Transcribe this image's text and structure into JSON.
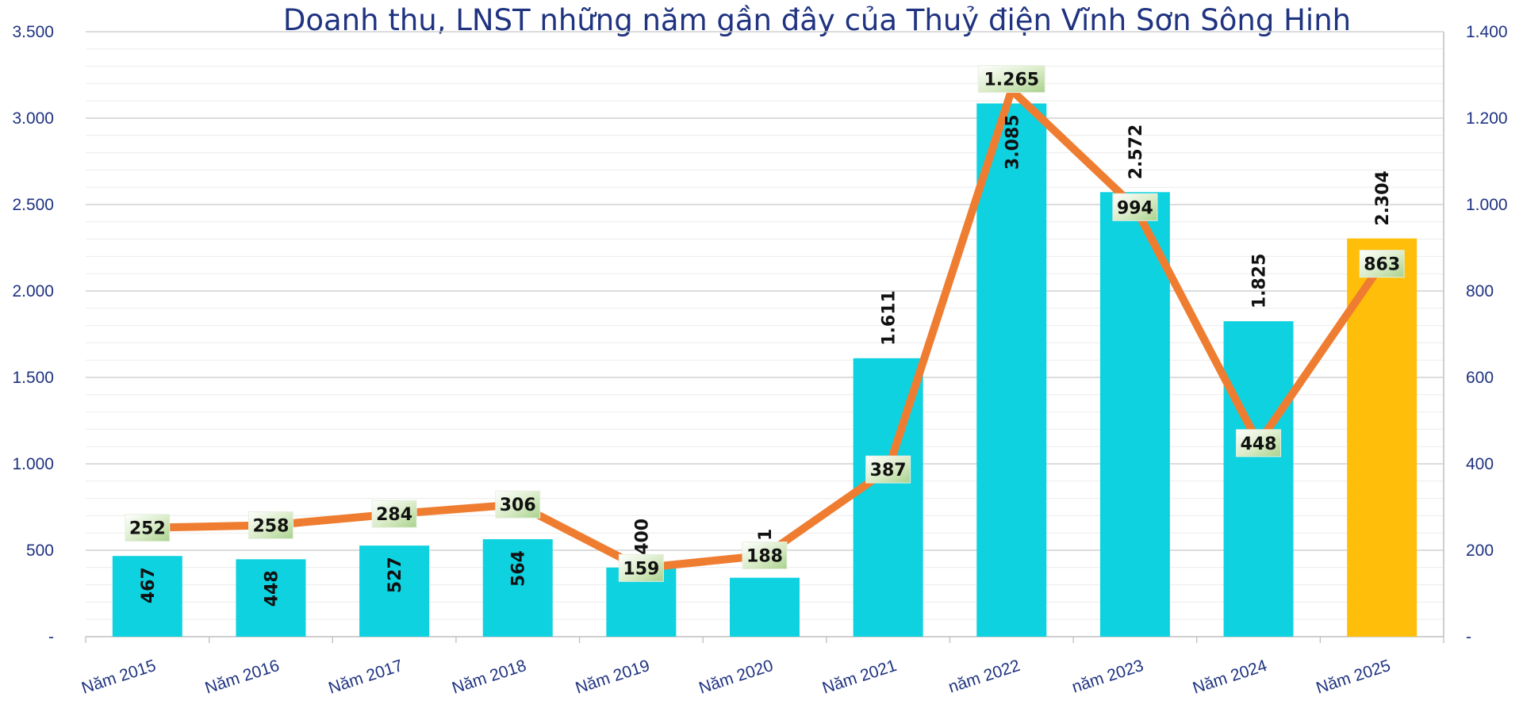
{
  "chart_data": {
    "type": "bar+line",
    "title": "Doanh thu, LNST những năm gần đây của Thuỷ điện Vĩnh Sơn Sông Hinh",
    "categories": [
      "Năm 2015",
      "Năm 2016",
      "Năm 2017",
      "Năm 2018",
      "Năm 2019",
      "Năm 2020",
      "Năm 2021",
      "năm 2022",
      "năm 2023",
      "Năm 2024",
      "Năm 2025"
    ],
    "bar_series": {
      "values": [
        467,
        448,
        527,
        564,
        400,
        341,
        1611,
        3085,
        2572,
        1825,
        2304
      ],
      "labels": [
        "467",
        "448",
        "527",
        "564",
        "400",
        "341",
        "1.611",
        "3.085",
        "2.572",
        "1.825",
        "2.304"
      ],
      "color": "#0fd2e0",
      "highlight_color": "#ffbe0a",
      "highlight_index": 10,
      "axis": "left"
    },
    "line_series": {
      "values": [
        252,
        258,
        284,
        306,
        159,
        188,
        387,
        1265,
        994,
        448,
        863
      ],
      "labels": [
        "252",
        "258",
        "284",
        "306",
        "159",
        "188",
        "387",
        "1.265",
        "994",
        "448",
        "863"
      ],
      "color": "#ef7d31",
      "axis": "right"
    },
    "left_axis": {
      "ylim": [
        0,
        3500
      ],
      "ticks": [
        0,
        500,
        1000,
        1500,
        2000,
        2500,
        3000,
        3500
      ],
      "tick_labels": [
        "-",
        "500",
        "1.000",
        "1.500",
        "2.000",
        "2.500",
        "3.000",
        "3.500"
      ]
    },
    "right_axis": {
      "ylim": [
        0,
        1400
      ],
      "ticks": [
        0,
        200,
        400,
        600,
        800,
        1000,
        1200,
        1400
      ],
      "tick_labels": [
        "-",
        "200",
        "400",
        "600",
        "800",
        "1.000",
        "1.200",
        "1.400"
      ]
    },
    "grid": true,
    "legend": "none"
  }
}
